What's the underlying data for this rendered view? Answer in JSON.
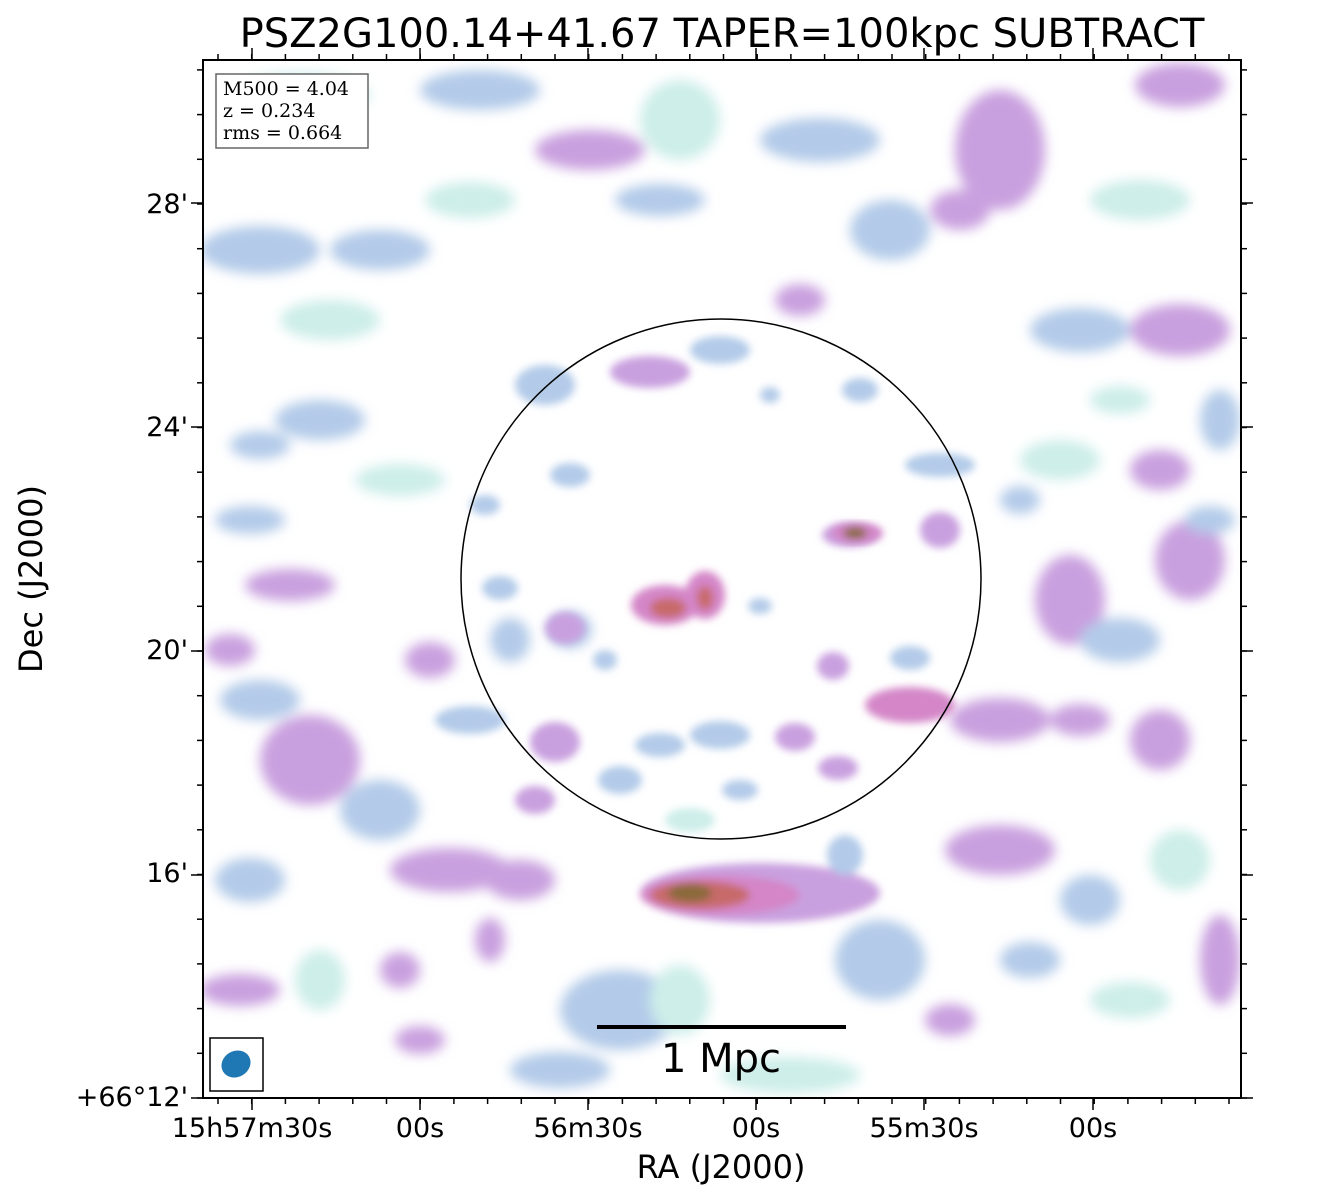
{
  "chart_data": {
    "type": "heatmap",
    "title": "PSZ2G100.14+41.67 TAPER=100kpc SUBTRACT",
    "xlabel": "RA (J2000)",
    "ylabel": "Dec (J2000)",
    "x_tick_labels": [
      "15h57m30s",
      "00s",
      "56m30s",
      "00s",
      "55m30s",
      "00s"
    ],
    "y_tick_labels": [
      "+66°12'",
      "16'",
      "20'",
      "24'",
      "28'"
    ],
    "info_box": [
      "M500 = 4.04",
      "z = 0.234",
      "rms = 0.664"
    ],
    "scalebar_label": "1 Mpc",
    "colormap": [
      "#ffffff",
      "#cdeee9",
      "#b3cbe9",
      "#c9a0df",
      "#d486c8",
      "#c86a6a",
      "#8a6a3a"
    ],
    "beam_color": "#1f77b4",
    "grid": false,
    "emission_regions": [
      {
        "name": "central-source",
        "level": 0.95
      },
      {
        "name": "east-compact-source",
        "level": 0.85
      },
      {
        "name": "south-extended-source",
        "level": 1.0
      }
    ]
  }
}
